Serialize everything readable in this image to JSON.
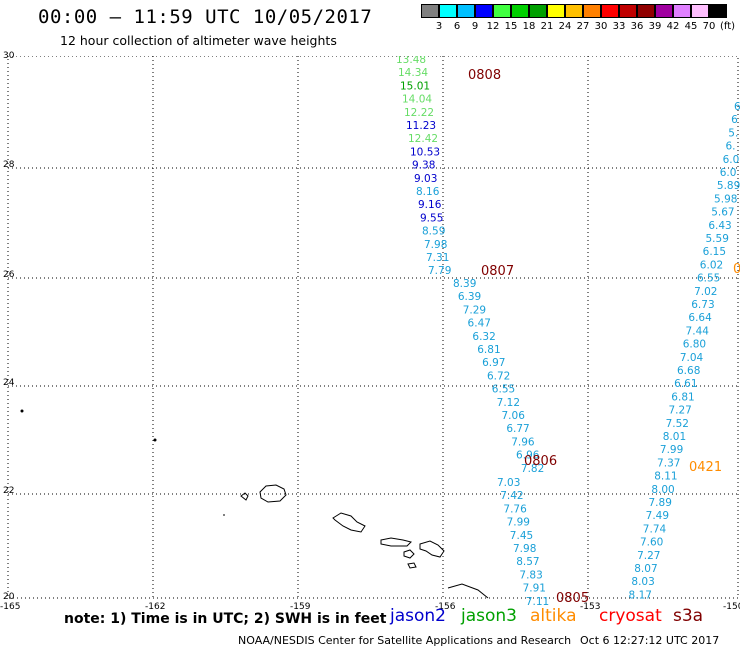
{
  "title": "00:00 – 11:59 UTC 10/05/2017",
  "subtitle": "12 hour collection of altimeter wave heights",
  "colorbar": {
    "colors": [
      "#808080",
      "#00ffff",
      "#00c0ff",
      "#0000ff",
      "#40ff40",
      "#00d000",
      "#00a000",
      "#ffff00",
      "#ffc000",
      "#ff8000",
      "#ff0000",
      "#c00000",
      "#900000",
      "#a000a0",
      "#e080ff",
      "#ffc0ff",
      "#000000"
    ],
    "labels": [
      "3",
      "6",
      "9",
      "12",
      "15",
      "18",
      "21",
      "24",
      "27",
      "30",
      "33",
      "36",
      "39",
      "42",
      "45",
      "70"
    ],
    "unit": "(ft)"
  },
  "axes": {
    "lat_labels": [
      "30",
      "28",
      "26",
      "24",
      "22",
      "20"
    ],
    "lon_labels": [
      "-165",
      "-162",
      "-159",
      "-156",
      "-153",
      "-150"
    ]
  },
  "tracks": [
    {
      "tag": "0808",
      "tag_color": "#800000",
      "points": [
        {
          "text": "13.48",
          "color": "#66dd66"
        },
        {
          "text": "14.34",
          "color": "#66dd66"
        },
        {
          "text": "15.01",
          "color": "#00a000"
        },
        {
          "text": "14.04",
          "color": "#66dd66"
        },
        {
          "text": "12.22",
          "color": "#66dd66"
        },
        {
          "text": "11.23",
          "color": "#0000cc"
        },
        {
          "text": "12.42",
          "color": "#66dd66"
        },
        {
          "text": "10.53",
          "color": "#0000cc"
        },
        {
          "text": "9.38",
          "color": "#0000cc"
        },
        {
          "text": "9.03",
          "color": "#0000cc"
        },
        {
          "text": "8.16",
          "color": "#1aa0d8"
        },
        {
          "text": "9.16",
          "color": "#0000cc"
        },
        {
          "text": "9.55",
          "color": "#0000cc"
        },
        {
          "text": "8.59",
          "color": "#1aa0d8"
        },
        {
          "text": "7.98",
          "color": "#1aa0d8"
        },
        {
          "text": "7.31",
          "color": "#1aa0d8"
        },
        {
          "text": "7.79",
          "color": "#1aa0d8"
        }
      ]
    },
    {
      "tag": "0807",
      "tag_color": "#800000",
      "points": [
        {
          "text": "8.39",
          "color": "#1aa0d8"
        },
        {
          "text": "6.39",
          "color": "#1aa0d8"
        },
        {
          "text": "7.29",
          "color": "#1aa0d8"
        },
        {
          "text": "6.47",
          "color": "#1aa0d8"
        },
        {
          "text": "6.32",
          "color": "#1aa0d8"
        },
        {
          "text": "6.81",
          "color": "#1aa0d8"
        },
        {
          "text": "6.97",
          "color": "#1aa0d8"
        },
        {
          "text": "6.72",
          "color": "#1aa0d8"
        },
        {
          "text": "6.55",
          "color": "#1aa0d8"
        },
        {
          "text": "7.12",
          "color": "#1aa0d8"
        },
        {
          "text": "7.06",
          "color": "#1aa0d8"
        },
        {
          "text": "6.77",
          "color": "#1aa0d8"
        },
        {
          "text": "7.96",
          "color": "#1aa0d8"
        },
        {
          "text": "6.96",
          "color": "#1aa0d8"
        },
        {
          "text": "7.82",
          "color": "#1aa0d8"
        }
      ]
    },
    {
      "tag": "0806",
      "tag_color": "#800000",
      "points": [
        {
          "text": "7.03",
          "color": "#1aa0d8"
        },
        {
          "text": "7.42",
          "color": "#1aa0d8"
        },
        {
          "text": "7.76",
          "color": "#1aa0d8"
        },
        {
          "text": "7.99",
          "color": "#1aa0d8"
        },
        {
          "text": "7.45",
          "color": "#1aa0d8"
        },
        {
          "text": "7.98",
          "color": "#1aa0d8"
        },
        {
          "text": "8.57",
          "color": "#1aa0d8"
        },
        {
          "text": "7.83",
          "color": "#1aa0d8"
        },
        {
          "text": "7.91",
          "color": "#1aa0d8"
        },
        {
          "text": "7.11",
          "color": "#1aa0d8"
        },
        {
          "text": "8.52",
          "color": "#1aa0d8"
        }
      ]
    },
    {
      "tag": "0805",
      "tag_color": "#800000",
      "points": []
    },
    {
      "tag": "0421",
      "tag_color": "#ff8c00",
      "points": [
        {
          "text": "6",
          "color": "#1aa0d8"
        },
        {
          "text": "6",
          "color": "#1aa0d8"
        },
        {
          "text": "5.",
          "color": "#1aa0d8"
        },
        {
          "text": "6.",
          "color": "#1aa0d8"
        },
        {
          "text": "6.0",
          "color": "#1aa0d8"
        },
        {
          "text": "6.0",
          "color": "#1aa0d8"
        },
        {
          "text": "5.89",
          "color": "#1aa0d8"
        },
        {
          "text": "5.98",
          "color": "#1aa0d8"
        },
        {
          "text": "5.67",
          "color": "#1aa0d8"
        },
        {
          "text": "6.43",
          "color": "#1aa0d8"
        },
        {
          "text": "5.59",
          "color": "#1aa0d8"
        },
        {
          "text": "6.15",
          "color": "#1aa0d8"
        },
        {
          "text": "6.02",
          "color": "#1aa0d8"
        },
        {
          "text": "6.55",
          "color": "#1aa0d8"
        },
        {
          "text": "7.02",
          "color": "#1aa0d8"
        },
        {
          "text": "6.73",
          "color": "#1aa0d8"
        },
        {
          "text": "6.64",
          "color": "#1aa0d8"
        },
        {
          "text": "7.44",
          "color": "#1aa0d8"
        },
        {
          "text": "6.80",
          "color": "#1aa0d8"
        },
        {
          "text": "7.04",
          "color": "#1aa0d8"
        },
        {
          "text": "6.68",
          "color": "#1aa0d8"
        },
        {
          "text": "6.61",
          "color": "#1aa0d8"
        },
        {
          "text": "6.81",
          "color": "#1aa0d8"
        },
        {
          "text": "7.27",
          "color": "#1aa0d8"
        },
        {
          "text": "7.52",
          "color": "#1aa0d8"
        },
        {
          "text": "8.01",
          "color": "#1aa0d8"
        },
        {
          "text": "7.99",
          "color": "#1aa0d8"
        },
        {
          "text": "7.37",
          "color": "#1aa0d8"
        },
        {
          "text": "8.11",
          "color": "#1aa0d8"
        },
        {
          "text": "8.00",
          "color": "#1aa0d8"
        },
        {
          "text": "7.89",
          "color": "#1aa0d8"
        },
        {
          "text": "7.49",
          "color": "#1aa0d8"
        },
        {
          "text": "7.74",
          "color": "#1aa0d8"
        },
        {
          "text": "7.60",
          "color": "#1aa0d8"
        },
        {
          "text": "7.27",
          "color": "#1aa0d8"
        },
        {
          "text": "8.07",
          "color": "#1aa0d8"
        },
        {
          "text": "8.03",
          "color": "#1aa0d8"
        },
        {
          "text": "8.17",
          "color": "#1aa0d8"
        }
      ]
    }
  ],
  "edge_tag": {
    "text": "0",
    "color": "#ff8c00"
  },
  "footer": {
    "note": "note: 1) Time is in UTC; 2) SWH is in feet",
    "legend": [
      {
        "name": "jason2",
        "color": "#0000cc"
      },
      {
        "name": "jason3",
        "color": "#00a000"
      },
      {
        "name": "altika",
        "color": "#ff8c00"
      },
      {
        "name": "cryosat",
        "color": "#ff0000"
      },
      {
        "name": "s3a",
        "color": "#800000"
      }
    ],
    "credit": "NOAA/NESDIS Center for Satellite Applications and Research",
    "timestamp": "Oct  6 12:27:12 UTC 2017"
  }
}
